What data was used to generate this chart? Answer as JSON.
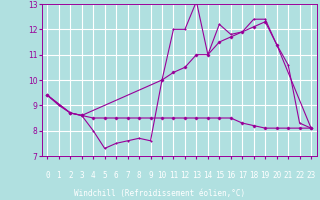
{
  "background_color": "#b0e0e0",
  "bottom_bar_color": "#6060a0",
  "grid_color": "#ffffff",
  "line_color": "#990099",
  "xlabel": "Windchill (Refroidissement éolien,°C)",
  "xlabel_fontsize": 5.5,
  "tick_fontsize": 5.5,
  "xlim": [
    -0.5,
    23.5
  ],
  "ylim": [
    7,
    13
  ],
  "yticks": [
    7,
    8,
    9,
    10,
    11,
    12,
    13
  ],
  "xticks": [
    0,
    1,
    2,
    3,
    4,
    5,
    6,
    7,
    8,
    9,
    10,
    11,
    12,
    13,
    14,
    15,
    16,
    17,
    18,
    19,
    20,
    21,
    22,
    23
  ],
  "series1_x": [
    0,
    1,
    2,
    3,
    4,
    5,
    6,
    7,
    8,
    9,
    10,
    11,
    12,
    13,
    14,
    15,
    16,
    17,
    18,
    19,
    20,
    21,
    22,
    23
  ],
  "series1_y": [
    9.4,
    9.0,
    8.7,
    8.6,
    8.0,
    7.3,
    7.5,
    7.6,
    7.7,
    7.6,
    10.0,
    12.0,
    12.0,
    13.1,
    11.0,
    12.2,
    11.8,
    11.9,
    12.4,
    12.4,
    11.4,
    10.6,
    8.3,
    8.1
  ],
  "series2_x": [
    0,
    2,
    3,
    4,
    5,
    6,
    7,
    8,
    9,
    10,
    11,
    12,
    13,
    14,
    15,
    16,
    17,
    18,
    19,
    20,
    21,
    22,
    23
  ],
  "series2_y": [
    9.4,
    8.7,
    8.6,
    8.5,
    8.5,
    8.5,
    8.5,
    8.5,
    8.5,
    8.5,
    8.5,
    8.5,
    8.5,
    8.5,
    8.5,
    8.5,
    8.3,
    8.2,
    8.1,
    8.1,
    8.1,
    8.1,
    8.1
  ],
  "series3_x": [
    0,
    2,
    3,
    10,
    11,
    12,
    13,
    14,
    15,
    16,
    17,
    18,
    19,
    20,
    23
  ],
  "series3_y": [
    9.4,
    8.7,
    8.6,
    10.0,
    10.3,
    10.5,
    11.0,
    11.0,
    11.5,
    11.7,
    11.9,
    12.1,
    12.3,
    11.4,
    8.1
  ]
}
